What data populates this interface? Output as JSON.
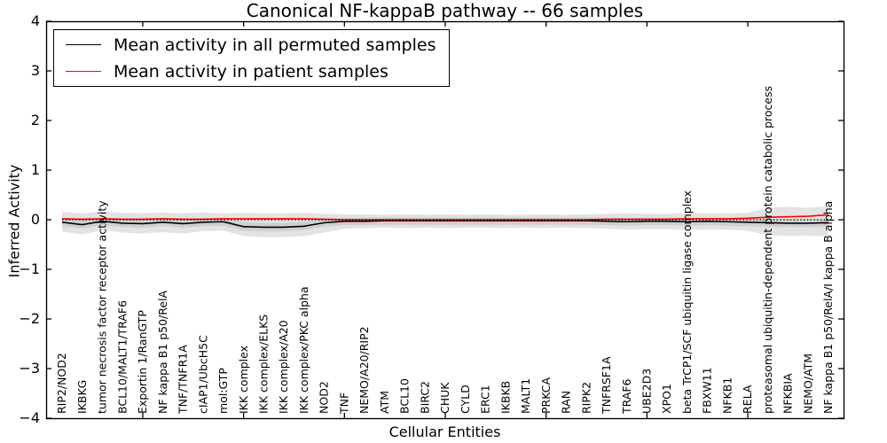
{
  "chart_data": {
    "type": "line",
    "title": "Canonical NF-kappaB pathway -- 66 samples",
    "xlabel": "Cellular Entities",
    "ylabel": "Inferred Activity",
    "ylim": [
      -4,
      4
    ],
    "yticks": [
      4,
      3,
      2,
      1,
      0,
      -1,
      -2,
      -3,
      -4
    ],
    "grid": false,
    "legend_position": "upper left",
    "x_major_tick_indices": [
      4,
      9,
      14,
      19,
      24,
      29,
      34
    ],
    "categories": [
      "RIP2/NOD2",
      "IKBKG",
      "tumor necrosis factor receptor activity",
      "BCL10/MALT1/TRAF6",
      "Exportin 1/RanGTP",
      "NF kappa B1 p50/RelA",
      "TNF/TNFR1A",
      "cIAP1/UbcH5C",
      "mol:GTP",
      "IKK complex",
      "IKK complex/ELKS",
      "IKK complex/A20",
      "IKK complex/PKC alpha",
      "NOD2",
      "TNF",
      "NEMO/A20/RIP2",
      "ATM",
      "BCL10",
      "BIRC2",
      "CHUK",
      "CYLD",
      "ERC1",
      "IKBKB",
      "MALT1",
      "PRKCA",
      "RAN",
      "RIPK2",
      "TNFRSF1A",
      "TRAF6",
      "UBE2D3",
      "XPO1",
      "beta TrCP1/SCF ubiquitin ligase complex",
      "FBXW11",
      "NFKB1",
      "RELA",
      "proteasomal ubiquitin-dependent protein catabolic process",
      "NFKBIA",
      "NEMO/ATM",
      "NF kappa B1 p50/RelA/I kappa B alpha"
    ],
    "series": [
      {
        "name": "Mean activity in all permuted samples",
        "color": "#000000",
        "style": "solid",
        "values": [
          -0.05,
          -0.1,
          -0.03,
          -0.07,
          -0.08,
          -0.05,
          -0.08,
          -0.05,
          -0.04,
          -0.14,
          -0.15,
          -0.15,
          -0.13,
          -0.06,
          -0.03,
          -0.03,
          -0.02,
          -0.02,
          -0.02,
          -0.02,
          -0.02,
          -0.02,
          -0.02,
          -0.02,
          -0.02,
          -0.02,
          -0.02,
          -0.03,
          -0.04,
          -0.03,
          -0.03,
          -0.04,
          -0.03,
          -0.04,
          -0.05,
          -0.06,
          -0.07,
          -0.07,
          -0.06
        ]
      },
      {
        "name": "Mean activity in patient samples",
        "color": "#ff0000",
        "style": "solid",
        "values": [
          0.02,
          0.01,
          0.02,
          0.01,
          0.01,
          0.02,
          0.01,
          0.01,
          0.02,
          0.02,
          0.02,
          0.02,
          0.02,
          0.01,
          0.0,
          0.0,
          0.0,
          0.0,
          0.0,
          0.0,
          0.0,
          0.0,
          0.0,
          0.0,
          0.0,
          0.0,
          0.0,
          0.01,
          0.01,
          0.01,
          0.01,
          0.02,
          0.02,
          0.02,
          0.03,
          0.05,
          0.06,
          0.07,
          0.1
        ]
      }
    ],
    "zero_line": {
      "value": 0,
      "color": "#000000",
      "style": "dotted"
    },
    "bands": [
      {
        "name": "permuted-range-outer",
        "color": "#e3e3e3",
        "top": [
          0.16,
          0.13,
          0.17,
          0.14,
          0.13,
          0.15,
          0.13,
          0.15,
          0.13,
          0.14,
          0.13,
          0.13,
          0.14,
          0.12,
          0.11,
          0.11,
          0.1,
          0.11,
          0.1,
          0.11,
          0.1,
          0.11,
          0.1,
          0.1,
          0.11,
          0.1,
          0.11,
          0.12,
          0.13,
          0.12,
          0.12,
          0.14,
          0.13,
          0.13,
          0.14,
          0.24,
          0.26,
          0.24,
          0.27
        ],
        "bottom": [
          -0.24,
          -0.3,
          -0.21,
          -0.26,
          -0.28,
          -0.25,
          -0.28,
          -0.23,
          -0.22,
          -0.33,
          -0.35,
          -0.35,
          -0.33,
          -0.26,
          -0.18,
          -0.17,
          -0.16,
          -0.17,
          -0.16,
          -0.17,
          -0.16,
          -0.16,
          -0.17,
          -0.16,
          -0.17,
          -0.16,
          -0.17,
          -0.18,
          -0.2,
          -0.19,
          -0.19,
          -0.21,
          -0.2,
          -0.2,
          -0.22,
          -0.31,
          -0.33,
          -0.32,
          -0.34
        ]
      },
      {
        "name": "permuted-range-inner",
        "color": "#cfcfcf",
        "top": [
          0.03,
          0.0,
          0.04,
          0.01,
          0.0,
          0.02,
          0.0,
          0.02,
          0.03,
          -0.05,
          -0.06,
          -0.06,
          -0.04,
          0.01,
          0.04,
          0.04,
          0.05,
          0.05,
          0.05,
          0.05,
          0.05,
          0.05,
          0.05,
          0.05,
          0.05,
          0.05,
          0.05,
          0.04,
          0.03,
          0.04,
          0.04,
          0.03,
          0.04,
          0.03,
          0.02,
          0.02,
          0.01,
          0.01,
          0.02
        ],
        "bottom": [
          -0.13,
          -0.18,
          -0.11,
          -0.15,
          -0.16,
          -0.13,
          -0.16,
          -0.13,
          -0.12,
          -0.22,
          -0.23,
          -0.23,
          -0.21,
          -0.14,
          -0.11,
          -0.11,
          -0.1,
          -0.1,
          -0.1,
          -0.1,
          -0.1,
          -0.1,
          -0.1,
          -0.1,
          -0.1,
          -0.1,
          -0.1,
          -0.11,
          -0.12,
          -0.11,
          -0.11,
          -0.12,
          -0.11,
          -0.12,
          -0.13,
          -0.14,
          -0.15,
          -0.15,
          -0.14
        ]
      }
    ]
  }
}
